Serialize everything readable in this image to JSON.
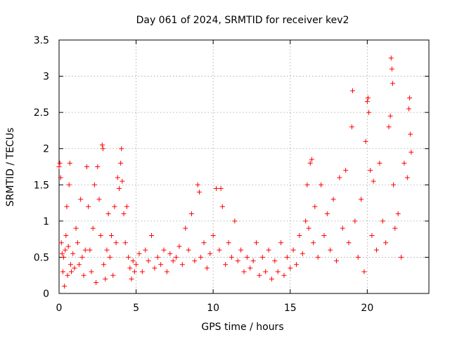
{
  "chart_data": {
    "type": "scatter",
    "title": "Day 061 of 2024, SRMTID for receiver kev2",
    "xlabel": "GPS time / hours",
    "ylabel": "SRMTID / TECUs",
    "xlim": [
      0,
      24
    ],
    "ylim": [
      0,
      3.5
    ],
    "xticks": [
      0,
      5,
      10,
      15,
      20
    ],
    "xtick_labels": [
      "0",
      "5",
      "10",
      "15",
      "20"
    ],
    "yticks": [
      0,
      0.5,
      1,
      1.5,
      2,
      2.5,
      3,
      3.5
    ],
    "ytick_labels": [
      "0",
      "0.5",
      "1",
      "1.5",
      "2",
      "2.5",
      "3",
      "3.5"
    ],
    "grid": true,
    "marker": "+",
    "series": [
      {
        "name": "SRMTID",
        "color": "#ff0000",
        "points": [
          [
            0.0,
            1.75
          ],
          [
            0.05,
            1.8
          ],
          [
            0.1,
            1.6
          ],
          [
            0.15,
            0.7
          ],
          [
            0.2,
            0.55
          ],
          [
            0.25,
            0.3
          ],
          [
            0.3,
            0.5
          ],
          [
            0.35,
            0.1
          ],
          [
            0.4,
            0.6
          ],
          [
            0.45,
            0.8
          ],
          [
            0.5,
            1.2
          ],
          [
            0.55,
            0.25
          ],
          [
            0.6,
            0.65
          ],
          [
            0.65,
            1.5
          ],
          [
            0.7,
            1.8
          ],
          [
            0.75,
            0.4
          ],
          [
            0.8,
            0.3
          ],
          [
            0.9,
            0.55
          ],
          [
            1.0,
            0.35
          ],
          [
            1.1,
            0.9
          ],
          [
            1.2,
            0.7
          ],
          [
            1.3,
            0.4
          ],
          [
            1.4,
            1.3
          ],
          [
            1.5,
            0.5
          ],
          [
            1.6,
            0.25
          ],
          [
            1.7,
            0.6
          ],
          [
            1.8,
            1.75
          ],
          [
            1.9,
            1.2
          ],
          [
            2.0,
            0.6
          ],
          [
            2.1,
            0.3
          ],
          [
            2.2,
            0.9
          ],
          [
            2.3,
            1.5
          ],
          [
            2.4,
            0.15
          ],
          [
            2.5,
            1.75
          ],
          [
            2.6,
            1.3
          ],
          [
            2.7,
            0.8
          ],
          [
            2.8,
            2.05
          ],
          [
            2.85,
            2.0
          ],
          [
            2.9,
            0.4
          ],
          [
            3.0,
            0.2
          ],
          [
            3.1,
            0.6
          ],
          [
            3.2,
            1.1
          ],
          [
            3.3,
            0.5
          ],
          [
            3.4,
            0.8
          ],
          [
            3.5,
            0.25
          ],
          [
            3.6,
            1.2
          ],
          [
            3.7,
            0.7
          ],
          [
            3.8,
            1.6
          ],
          [
            3.9,
            1.45
          ],
          [
            4.0,
            1.8
          ],
          [
            4.05,
            2.0
          ],
          [
            4.1,
            1.55
          ],
          [
            4.2,
            1.1
          ],
          [
            4.3,
            0.7
          ],
          [
            4.4,
            1.2
          ],
          [
            4.5,
            0.5
          ],
          [
            4.6,
            0.35
          ],
          [
            4.7,
            0.2
          ],
          [
            4.8,
            0.45
          ],
          [
            4.9,
            0.3
          ],
          [
            5.0,
            0.4
          ],
          [
            5.2,
            0.55
          ],
          [
            5.4,
            0.3
          ],
          [
            5.6,
            0.6
          ],
          [
            5.8,
            0.45
          ],
          [
            6.0,
            0.8
          ],
          [
            6.2,
            0.35
          ],
          [
            6.4,
            0.5
          ],
          [
            6.6,
            0.4
          ],
          [
            6.8,
            0.6
          ],
          [
            7.0,
            0.3
          ],
          [
            7.2,
            0.55
          ],
          [
            7.4,
            0.45
          ],
          [
            7.6,
            0.5
          ],
          [
            7.8,
            0.65
          ],
          [
            8.0,
            0.4
          ],
          [
            8.2,
            0.9
          ],
          [
            8.4,
            0.6
          ],
          [
            8.6,
            1.1
          ],
          [
            8.8,
            0.45
          ],
          [
            9.0,
            1.5
          ],
          [
            9.1,
            1.4
          ],
          [
            9.2,
            0.5
          ],
          [
            9.4,
            0.7
          ],
          [
            9.6,
            0.35
          ],
          [
            9.8,
            0.55
          ],
          [
            10.0,
            0.8
          ],
          [
            10.2,
            1.45
          ],
          [
            10.4,
            0.6
          ],
          [
            10.5,
            1.45
          ],
          [
            10.6,
            1.2
          ],
          [
            10.8,
            0.4
          ],
          [
            11.0,
            0.7
          ],
          [
            11.2,
            0.5
          ],
          [
            11.4,
            1.0
          ],
          [
            11.6,
            0.45
          ],
          [
            11.8,
            0.6
          ],
          [
            12.0,
            0.3
          ],
          [
            12.2,
            0.5
          ],
          [
            12.4,
            0.35
          ],
          [
            12.6,
            0.45
          ],
          [
            12.8,
            0.7
          ],
          [
            13.0,
            0.25
          ],
          [
            13.2,
            0.5
          ],
          [
            13.4,
            0.3
          ],
          [
            13.6,
            0.6
          ],
          [
            13.8,
            0.2
          ],
          [
            14.0,
            0.45
          ],
          [
            14.2,
            0.3
          ],
          [
            14.4,
            0.7
          ],
          [
            14.6,
            0.25
          ],
          [
            14.8,
            0.5
          ],
          [
            15.0,
            0.35
          ],
          [
            15.2,
            0.6
          ],
          [
            15.4,
            0.4
          ],
          [
            15.6,
            0.8
          ],
          [
            15.8,
            0.55
          ],
          [
            16.0,
            1.0
          ],
          [
            16.1,
            1.5
          ],
          [
            16.2,
            0.9
          ],
          [
            16.3,
            1.8
          ],
          [
            16.4,
            1.85
          ],
          [
            16.5,
            0.7
          ],
          [
            16.6,
            1.2
          ],
          [
            16.8,
            0.5
          ],
          [
            17.0,
            1.5
          ],
          [
            17.2,
            0.8
          ],
          [
            17.4,
            1.1
          ],
          [
            17.6,
            0.6
          ],
          [
            17.8,
            1.3
          ],
          [
            18.0,
            0.45
          ],
          [
            18.2,
            1.6
          ],
          [
            18.4,
            0.9
          ],
          [
            18.6,
            1.7
          ],
          [
            18.8,
            0.7
          ],
          [
            19.0,
            2.3
          ],
          [
            19.05,
            2.8
          ],
          [
            19.2,
            1.0
          ],
          [
            19.4,
            0.5
          ],
          [
            19.6,
            1.3
          ],
          [
            19.8,
            0.3
          ],
          [
            19.9,
            2.1
          ],
          [
            20.0,
            2.65
          ],
          [
            20.05,
            2.7
          ],
          [
            20.1,
            2.5
          ],
          [
            20.2,
            1.7
          ],
          [
            20.3,
            0.8
          ],
          [
            20.4,
            1.55
          ],
          [
            20.6,
            0.6
          ],
          [
            20.8,
            1.8
          ],
          [
            21.0,
            1.0
          ],
          [
            21.2,
            0.7
          ],
          [
            21.4,
            2.3
          ],
          [
            21.5,
            2.45
          ],
          [
            21.55,
            3.25
          ],
          [
            21.6,
            3.1
          ],
          [
            21.65,
            2.9
          ],
          [
            21.7,
            1.5
          ],
          [
            21.8,
            0.9
          ],
          [
            22.0,
            1.1
          ],
          [
            22.2,
            0.5
          ],
          [
            22.4,
            1.8
          ],
          [
            22.6,
            1.6
          ],
          [
            22.7,
            2.55
          ],
          [
            22.75,
            2.7
          ],
          [
            22.8,
            2.2
          ],
          [
            22.85,
            1.95
          ]
        ]
      }
    ]
  }
}
